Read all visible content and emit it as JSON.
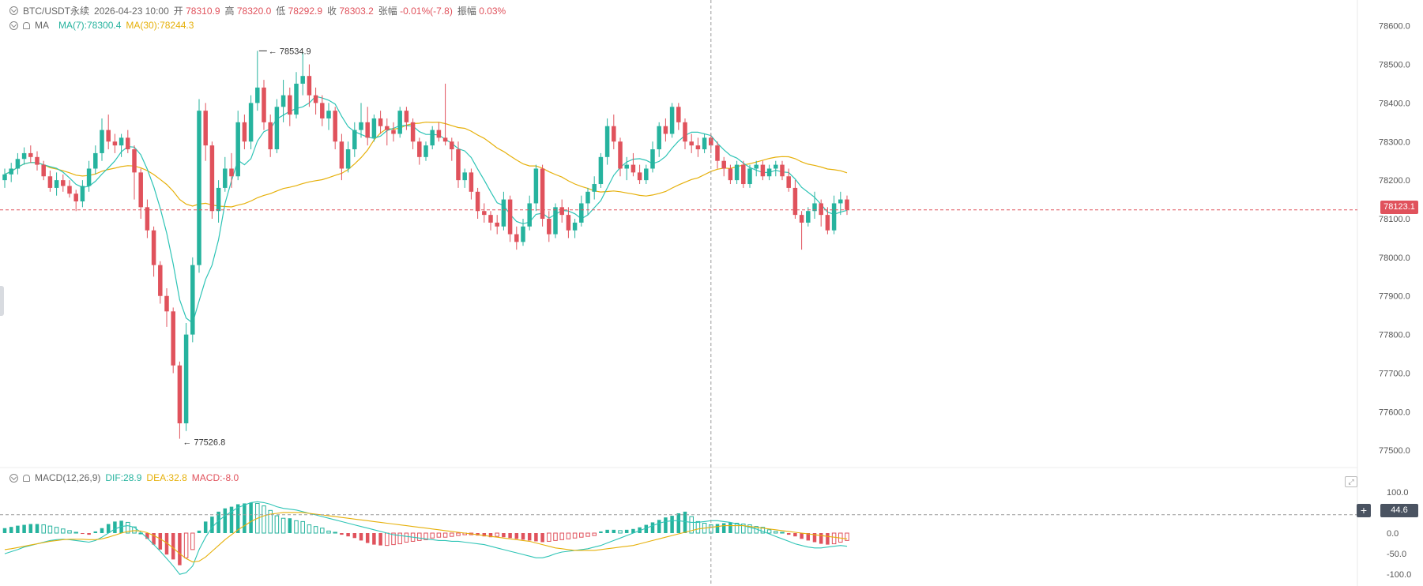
{
  "header": {
    "symbol": "BTC/USDT永续",
    "datetime": "2026-04-23 10:00",
    "open_label": "开",
    "open_value": "78310.9",
    "high_label": "高",
    "high_value": "78320.0",
    "low_label": "低",
    "low_value": "78292.9",
    "close_label": "收",
    "close_value": "78303.2",
    "change_label": "张幅",
    "change_value": "-0.01%(-7.8)",
    "amplitude_label": "振幅",
    "amplitude_value": "0.03%"
  },
  "ma_legend": {
    "label": "MA",
    "ma7": "MA(7):78300.4",
    "ma30": "MA(30):78244.3"
  },
  "macd_legend": {
    "label": "MACD(12,26,9)",
    "dif": "DIF:28.9",
    "dea": "DEA:32.8",
    "macd": "MACD:-8.0"
  },
  "price_axis": {
    "ticks": [
      "78600.0",
      "78500.0",
      "78400.0",
      "78300.0",
      "78200.0",
      "78100.0",
      "78000.0",
      "77900.0",
      "77800.0",
      "77700.0",
      "77600.0",
      "77500.0"
    ],
    "current_price": "78123.1"
  },
  "macd_axis": {
    "ticks": [
      "100.0",
      "50.0",
      "0.0",
      "-50.0",
      "-100.0"
    ],
    "crosshair_value": "44.6"
  },
  "annotations": {
    "high": "78534.9",
    "low": "77526.8"
  },
  "colors": {
    "up": "#26b39e",
    "down": "#e0525c",
    "ma7": "#2ec4b6",
    "ma30": "#e6b00a",
    "dif": "#2ec4b6",
    "dea": "#e6b00a"
  },
  "chart_data": {
    "type": "candlestick",
    "price_ylim": [
      77480,
      78630
    ],
    "macd_ylim": [
      -115,
      115
    ],
    "candles": [
      [
        78200,
        78230,
        78180,
        78215
      ],
      [
        78215,
        78245,
        78195,
        78230
      ],
      [
        78230,
        78270,
        78215,
        78255
      ],
      [
        78255,
        78285,
        78240,
        78270
      ],
      [
        78270,
        78290,
        78245,
        78260
      ],
      [
        78260,
        78275,
        78225,
        78240
      ],
      [
        78240,
        78250,
        78200,
        78210
      ],
      [
        78210,
        78225,
        78170,
        78180
      ],
      [
        78180,
        78220,
        78160,
        78200
      ],
      [
        78200,
        78215,
        78170,
        78185
      ],
      [
        78185,
        78200,
        78155,
        78165
      ],
      [
        78165,
        78175,
        78120,
        78145
      ],
      [
        78145,
        78200,
        78130,
        78185
      ],
      [
        78185,
        78250,
        78170,
        78230
      ],
      [
        78230,
        78290,
        78215,
        78270
      ],
      [
        78270,
        78360,
        78250,
        78330
      ],
      [
        78330,
        78370,
        78280,
        78300
      ],
      [
        78300,
        78320,
        78270,
        78290
      ],
      [
        78290,
        78320,
        78260,
        78310
      ],
      [
        78310,
        78330,
        78270,
        78280
      ],
      [
        78280,
        78290,
        78150,
        78220
      ],
      [
        78220,
        78230,
        78100,
        78130
      ],
      [
        78130,
        78150,
        78050,
        78070
      ],
      [
        78070,
        78080,
        77950,
        77980
      ],
      [
        77980,
        77990,
        77880,
        77900
      ],
      [
        77900,
        77920,
        77820,
        77860
      ],
      [
        77860,
        77870,
        77700,
        77720
      ],
      [
        77720,
        77730,
        77530,
        77570
      ],
      [
        77570,
        77830,
        77550,
        77800
      ],
      [
        77800,
        78000,
        77780,
        77980
      ],
      [
        77980,
        78410,
        77960,
        78380
      ],
      [
        78380,
        78400,
        78250,
        78290
      ],
      [
        78290,
        78300,
        78100,
        78120
      ],
      [
        78120,
        78200,
        78090,
        78180
      ],
      [
        78180,
        78260,
        78170,
        78230
      ],
      [
        78230,
        78270,
        78180,
        78210
      ],
      [
        78210,
        78380,
        78200,
        78350
      ],
      [
        78350,
        78370,
        78280,
        78300
      ],
      [
        78300,
        78420,
        78280,
        78400
      ],
      [
        78400,
        78535,
        78380,
        78440
      ],
      [
        78440,
        78460,
        78330,
        78350
      ],
      [
        78350,
        78370,
        78260,
        78280
      ],
      [
        78280,
        78410,
        78270,
        78390
      ],
      [
        78390,
        78460,
        78350,
        78420
      ],
      [
        78420,
        78440,
        78340,
        78370
      ],
      [
        78370,
        78480,
        78360,
        78450
      ],
      [
        78450,
        78530,
        78420,
        78470
      ],
      [
        78470,
        78500,
        78390,
        78420
      ],
      [
        78420,
        78440,
        78370,
        78400
      ],
      [
        78400,
        78420,
        78340,
        78360
      ],
      [
        78360,
        78400,
        78330,
        78380
      ],
      [
        78380,
        78390,
        78280,
        78300
      ],
      [
        78300,
        78320,
        78200,
        78230
      ],
      [
        78230,
        78300,
        78220,
        78280
      ],
      [
        78280,
        78350,
        78260,
        78330
      ],
      [
        78330,
        78400,
        78310,
        78350
      ],
      [
        78350,
        78390,
        78290,
        78310
      ],
      [
        78310,
        78370,
        78300,
        78360
      ],
      [
        78360,
        78380,
        78320,
        78340
      ],
      [
        78340,
        78360,
        78290,
        78330
      ],
      [
        78330,
        78350,
        78300,
        78320
      ],
      [
        78320,
        78390,
        78310,
        78380
      ],
      [
        78380,
        78390,
        78330,
        78350
      ],
      [
        78350,
        78360,
        78280,
        78300
      ],
      [
        78300,
        78310,
        78240,
        78260
      ],
      [
        78260,
        78300,
        78250,
        78290
      ],
      [
        78290,
        78340,
        78280,
        78330
      ],
      [
        78330,
        78350,
        78300,
        78310
      ],
      [
        78310,
        78450,
        78290,
        78300
      ],
      [
        78300,
        78310,
        78250,
        78280
      ],
      [
        78280,
        78300,
        78180,
        78200
      ],
      [
        78200,
        78230,
        78180,
        78220
      ],
      [
        78220,
        78230,
        78150,
        78170
      ],
      [
        78170,
        78180,
        78100,
        78120
      ],
      [
        78120,
        78140,
        78090,
        78110
      ],
      [
        78110,
        78120,
        78070,
        78090
      ],
      [
        78090,
        78110,
        78060,
        78080
      ],
      [
        78080,
        78170,
        78070,
        78150
      ],
      [
        78150,
        78160,
        78040,
        78060
      ],
      [
        78060,
        78080,
        78020,
        78040
      ],
      [
        78040,
        78100,
        78030,
        78080
      ],
      [
        78080,
        78160,
        78070,
        78140
      ],
      [
        78140,
        78240,
        78120,
        78230
      ],
      [
        78230,
        78240,
        78080,
        78100
      ],
      [
        78100,
        78120,
        78040,
        78060
      ],
      [
        78060,
        78140,
        78050,
        78130
      ],
      [
        78130,
        78150,
        78090,
        78110
      ],
      [
        78110,
        78130,
        78050,
        78070
      ],
      [
        78070,
        78100,
        78050,
        78090
      ],
      [
        78090,
        78160,
        78080,
        78140
      ],
      [
        78140,
        78180,
        78110,
        78170
      ],
      [
        78170,
        78210,
        78150,
        78190
      ],
      [
        78190,
        78270,
        78180,
        78260
      ],
      [
        78260,
        78360,
        78240,
        78340
      ],
      [
        78340,
        78370,
        78280,
        78300
      ],
      [
        78300,
        78310,
        78210,
        78230
      ],
      [
        78230,
        78260,
        78200,
        78240
      ],
      [
        78240,
        78270,
        78210,
        78220
      ],
      [
        78220,
        78240,
        78190,
        78200
      ],
      [
        78200,
        78240,
        78190,
        78230
      ],
      [
        78230,
        78300,
        78220,
        78280
      ],
      [
        78280,
        78350,
        78260,
        78340
      ],
      [
        78340,
        78360,
        78300,
        78320
      ],
      [
        78320,
        78400,
        78310,
        78390
      ],
      [
        78390,
        78400,
        78330,
        78350
      ],
      [
        78350,
        78360,
        78280,
        78300
      ],
      [
        78300,
        78320,
        78270,
        78290
      ],
      [
        78290,
        78310,
        78260,
        78280
      ],
      [
        78280,
        78320,
        78270,
        78310
      ],
      [
        78310,
        78320,
        78270,
        78290
      ],
      [
        78290,
        78300,
        78230,
        78250
      ],
      [
        78250,
        78260,
        78210,
        78230
      ],
      [
        78230,
        78240,
        78190,
        78200
      ],
      [
        78200,
        78250,
        78190,
        78240
      ],
      [
        78240,
        78250,
        78180,
        78190
      ],
      [
        78190,
        78240,
        78180,
        78230
      ],
      [
        78230,
        78250,
        78210,
        78240
      ],
      [
        78240,
        78250,
        78200,
        78210
      ],
      [
        78210,
        78240,
        78200,
        78230
      ],
      [
        78230,
        78250,
        78210,
        78240
      ],
      [
        78240,
        78250,
        78200,
        78210
      ],
      [
        78210,
        78230,
        78170,
        78180
      ],
      [
        78180,
        78200,
        78100,
        78110
      ],
      [
        78110,
        78120,
        78020,
        78090
      ],
      [
        78090,
        78130,
        78080,
        78120
      ],
      [
        78120,
        78170,
        78100,
        78140
      ],
      [
        78140,
        78150,
        78080,
        78110
      ],
      [
        78110,
        78130,
        78060,
        78070
      ],
      [
        78070,
        78160,
        78060,
        78140
      ],
      [
        78140,
        78170,
        78110,
        78150
      ],
      [
        78150,
        78160,
        78110,
        78123
      ]
    ],
    "macd_histogram": [
      12,
      15,
      18,
      20,
      22,
      22,
      20,
      17,
      14,
      10,
      6,
      2,
      -2,
      -4,
      4,
      12,
      22,
      28,
      30,
      26,
      15,
      0,
      -14,
      -28,
      -40,
      -52,
      -64,
      -78,
      -60,
      -40,
      6,
      28,
      40,
      52,
      60,
      64,
      70,
      72,
      74,
      72,
      66,
      55,
      42,
      36,
      36,
      30,
      28,
      20,
      16,
      12,
      5,
      2,
      -4,
      -8,
      -12,
      -18,
      -24,
      -28,
      -30,
      -30,
      -28,
      -26,
      -22,
      -20,
      -18,
      -16,
      -12,
      -10,
      -10,
      -8,
      -6,
      -4,
      -4,
      -6,
      -8,
      -10,
      -8,
      -10,
      -12,
      -14,
      -16,
      -18,
      -20,
      -22,
      -20,
      -18,
      -16,
      -14,
      -12,
      -10,
      -8,
      -6,
      4,
      8,
      8,
      6,
      8,
      10,
      14,
      20,
      26,
      32,
      38,
      42,
      48,
      52,
      40,
      28,
      24,
      20,
      22,
      24,
      26,
      24,
      22,
      20,
      16,
      14,
      8,
      4,
      2,
      -4,
      -8,
      -14,
      -18,
      -22,
      -26,
      -28,
      -26,
      -22,
      -18,
      -14,
      -18,
      -22,
      -26,
      -20,
      -18,
      -14,
      -18
    ],
    "dif": [
      -50,
      -45,
      -40,
      -34,
      -30,
      -26,
      -22,
      -18,
      -16,
      -15,
      -16,
      -18,
      -20,
      -22,
      -18,
      -10,
      0,
      10,
      16,
      18,
      14,
      2,
      -12,
      -28,
      -44,
      -62,
      -80,
      -100,
      -96,
      -80,
      -40,
      -10,
      14,
      30,
      42,
      52,
      62,
      68,
      74,
      76,
      74,
      70,
      64,
      60,
      58,
      56,
      52,
      48,
      44,
      40,
      36,
      32,
      28,
      24,
      20,
      16,
      12,
      8,
      4,
      0,
      -4,
      -6,
      -8,
      -10,
      -12,
      -14,
      -16,
      -18,
      -18,
      -20,
      -20,
      -22,
      -24,
      -26,
      -28,
      -32,
      -36,
      -40,
      -44,
      -48,
      -52,
      -56,
      -60,
      -60,
      -56,
      -50,
      -46,
      -44,
      -42,
      -40,
      -38,
      -34,
      -30,
      -24,
      -18,
      -12,
      -6,
      0,
      6,
      12,
      18,
      24,
      28,
      30,
      30,
      28,
      26,
      26,
      28,
      30,
      30,
      28,
      26,
      22,
      18,
      14,
      10,
      4,
      -2,
      -8,
      -14,
      -20,
      -26,
      -30,
      -34,
      -36,
      -36,
      -34,
      -32,
      -30,
      -32,
      -34,
      -36,
      -34,
      -32,
      -30
    ],
    "dea": [
      -40,
      -38,
      -35,
      -32,
      -29,
      -26,
      -23,
      -20,
      -18,
      -16,
      -15,
      -15,
      -15,
      -16,
      -16,
      -14,
      -10,
      -5,
      0,
      4,
      6,
      5,
      1,
      -6,
      -14,
      -24,
      -36,
      -50,
      -62,
      -70,
      -68,
      -58,
      -44,
      -30,
      -16,
      -4,
      8,
      18,
      28,
      36,
      42,
      46,
      48,
      50,
      50,
      50,
      50,
      48,
      46,
      44,
      42,
      40,
      38,
      36,
      34,
      32,
      30,
      28,
      26,
      24,
      22,
      20,
      18,
      16,
      14,
      12,
      10,
      8,
      6,
      4,
      2,
      0,
      -2,
      -4,
      -6,
      -8,
      -10,
      -12,
      -14,
      -16,
      -18,
      -20,
      -24,
      -28,
      -32,
      -36,
      -38,
      -40,
      -42,
      -42,
      -42,
      -42,
      -40,
      -38,
      -36,
      -34,
      -32,
      -30,
      -26,
      -22,
      -18,
      -14,
      -10,
      -6,
      -2,
      2,
      6,
      10,
      12,
      14,
      16,
      18,
      18,
      18,
      18,
      16,
      14,
      12,
      10,
      8,
      6,
      4,
      2,
      0,
      -2,
      -4,
      -6,
      -8,
      -10,
      -12,
      -14,
      -16,
      -18,
      -20,
      -22,
      -24,
      -26
    ]
  }
}
